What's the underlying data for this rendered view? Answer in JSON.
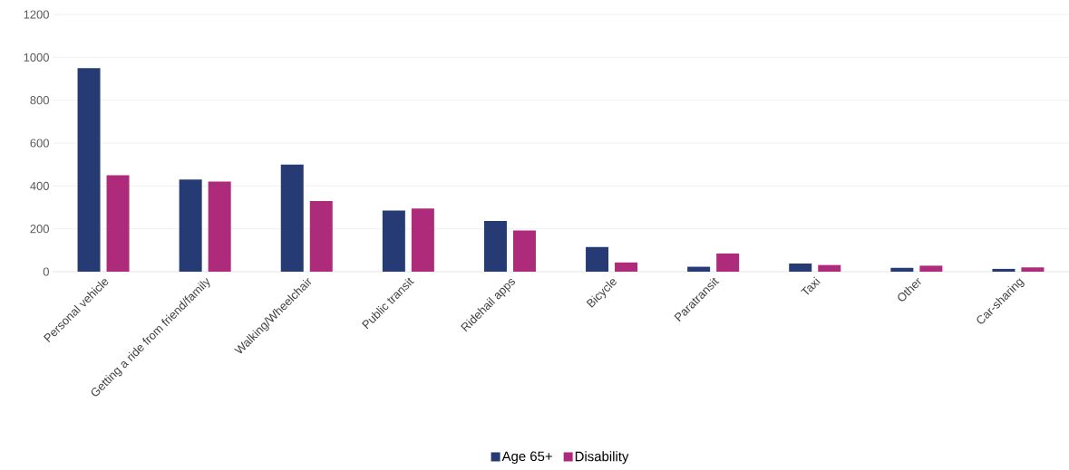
{
  "chart_data": {
    "type": "bar",
    "categories": [
      "Personal vehicle",
      "Getting a ride from friend/family",
      "Walking/Wheelchair",
      "Public transit",
      "Ridehail apps",
      "Bicycle",
      "Paratransit",
      "Taxi",
      "Other",
      "Car-sharing"
    ],
    "series": [
      {
        "name": "Age 65+",
        "color": "#263a74",
        "values": [
          950,
          430,
          500,
          285,
          237,
          115,
          23,
          38,
          18,
          13
        ]
      },
      {
        "name": "Disability",
        "color": "#ae2a7a",
        "values": [
          450,
          420,
          330,
          295,
          192,
          43,
          85,
          31,
          28,
          20
        ]
      }
    ],
    "ylim": [
      0,
      1200
    ],
    "yticks": [
      0,
      200,
      400,
      600,
      800,
      1000,
      1200
    ],
    "grid": "y",
    "legend": "bottom"
  }
}
